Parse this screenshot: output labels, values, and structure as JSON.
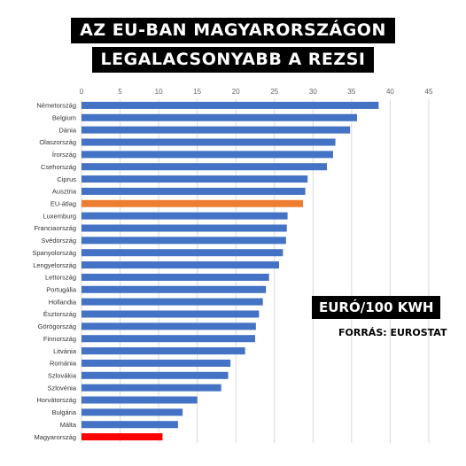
{
  "title_lines": [
    "AZ EU-BAN MAGYARORSZÁGON",
    "LEGALACSONYABB A REZSI"
  ],
  "unit_label": "EURÓ/100 KWH",
  "source": "FORRÁS: EUROSTAT",
  "colors": {
    "bar_default": "#4472C4",
    "bar_eu_average": "#ED7D31",
    "bar_hungary": "#FF0000",
    "grid": "#D9D9D9"
  },
  "chart_data": {
    "type": "bar",
    "orientation": "horizontal",
    "xlim": [
      0,
      45
    ],
    "xticks": [
      0,
      5,
      10,
      15,
      20,
      25,
      30,
      35,
      40,
      45
    ],
    "axis_position": "top",
    "grid": true,
    "categories": [
      "Németország",
      "Belgium",
      "Dánia",
      "Olaszország",
      "Írország",
      "Csehország",
      "Ciprus",
      "Ausztria",
      "EU-átlag",
      "Luxemburg",
      "Franciaország",
      "Svédország",
      "Spanyolország",
      "Lengyelország",
      "Lettország",
      "Portugália",
      "Hollandia",
      "Észtország",
      "Görögország",
      "Finnország",
      "Litvánia",
      "Románia",
      "Szlovákia",
      "Szlovénia",
      "Horvátország",
      "Bulgária",
      "Málta",
      "Magyarország"
    ],
    "values": [
      38.5,
      35.7,
      34.8,
      32.9,
      32.6,
      31.8,
      29.3,
      29.0,
      28.7,
      26.7,
      26.6,
      26.5,
      26.1,
      25.6,
      24.3,
      23.9,
      23.5,
      23.0,
      22.6,
      22.5,
      21.2,
      19.3,
      19.0,
      18.1,
      15.0,
      13.1,
      12.5,
      10.5
    ],
    "highlight": {
      "EU-átlag": "eu_average",
      "Magyarország": "hungary"
    }
  }
}
